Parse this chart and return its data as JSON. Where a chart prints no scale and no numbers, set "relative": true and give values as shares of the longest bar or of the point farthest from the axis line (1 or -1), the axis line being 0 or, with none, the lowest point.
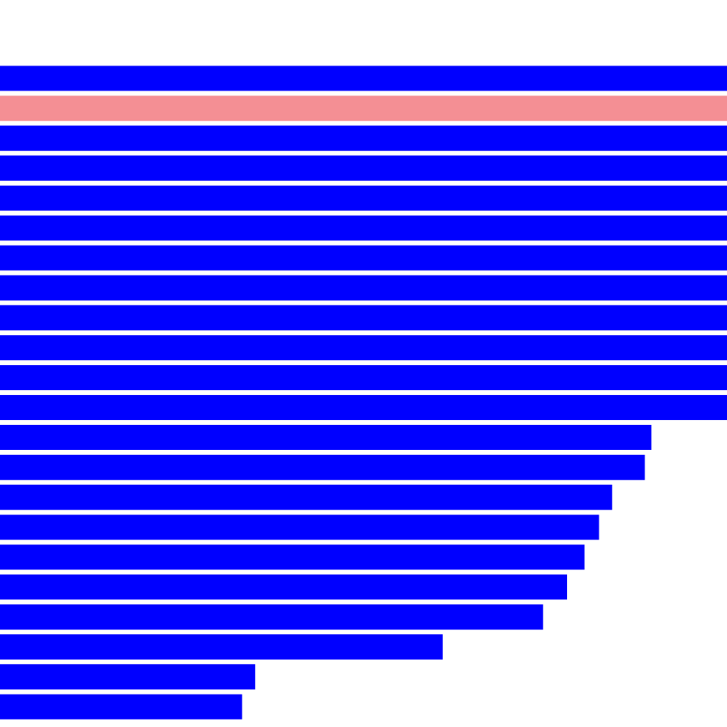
{
  "chart_data": {
    "type": "bar",
    "orientation": "horizontal",
    "relative": true,
    "categories": [
      null,
      null,
      null,
      null,
      null,
      null,
      null,
      null,
      null,
      null,
      null,
      null,
      null,
      null,
      null,
      null,
      null,
      null,
      null,
      null,
      null,
      null
    ],
    "values": [
      1,
      1,
      1,
      1,
      1,
      1,
      1,
      1,
      1,
      1,
      1,
      1,
      0.896,
      0.887,
      0.842,
      0.824,
      0.804,
      0.78,
      0.747,
      0.609,
      0.351,
      0.333
    ],
    "colors": [
      "#0000ff",
      "#f48f94",
      "#0000ff",
      "#0000ff",
      "#0000ff",
      "#0000ff",
      "#0000ff",
      "#0000ff",
      "#0000ff",
      "#0000ff",
      "#0000ff",
      "#0000ff",
      "#0000ff",
      "#0000ff",
      "#0000ff",
      "#0000ff",
      "#0000ff",
      "#0000ff",
      "#0000ff",
      "#0000ff",
      "#0000ff",
      "#0000ff"
    ]
  }
}
